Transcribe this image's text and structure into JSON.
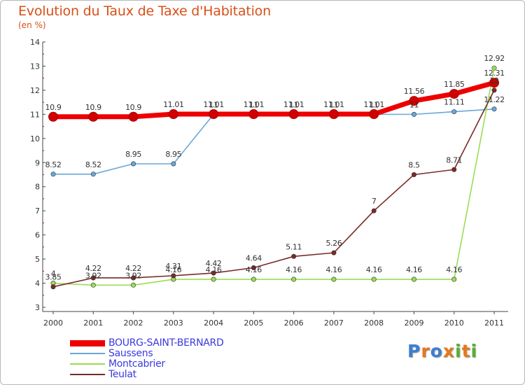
{
  "chart_data": {
    "type": "line",
    "title": "Evolution du Taux de Taxe d'Habitation",
    "subtitle": "(en %)",
    "xlabel": "",
    "ylabel": "",
    "ylim": [
      3,
      14
    ],
    "yticks": [
      "3",
      "4",
      "5",
      "6",
      "7",
      "8",
      "9",
      "10",
      "11",
      "12",
      "13",
      "14"
    ],
    "categories": [
      "2000",
      "2001",
      "2002",
      "2003",
      "2004",
      "2005",
      "2006",
      "2007",
      "2008",
      "2009",
      "2010",
      "2011"
    ],
    "grid": false,
    "series": [
      {
        "name": "BOURG-SAINT-BERNARD",
        "color": "#ee0000",
        "bold": true,
        "values": [
          10.9,
          10.9,
          10.9,
          11.01,
          11.01,
          11.01,
          11.01,
          11.01,
          11.01,
          11.56,
          11.85,
          12.31
        ],
        "labels": [
          "10.9",
          "10.9",
          "10.9",
          "11.01",
          "11.01",
          "11.01",
          "11.01",
          "11.01",
          "11.01",
          "11.56",
          "11.85",
          "12.31"
        ]
      },
      {
        "name": "Saussens",
        "color": "#6aa8d8",
        "bold": false,
        "values": [
          8.52,
          8.52,
          8.95,
          8.95,
          11,
          11,
          11,
          11,
          11,
          11,
          11.11,
          11.22
        ],
        "labels": [
          "8.52",
          "8.52",
          "8.95",
          "8.95",
          "11",
          "11",
          "11",
          "11",
          "11",
          "11",
          "11.11",
          "11.22"
        ]
      },
      {
        "name": "Montcabrier",
        "color": "#99dd55",
        "bold": false,
        "values": [
          4,
          3.92,
          3.92,
          4.16,
          4.16,
          4.16,
          4.16,
          4.16,
          4.16,
          4.16,
          4.16,
          12.92
        ],
        "labels": [
          "4",
          "3.92",
          "3.92",
          "4.16",
          "4.16",
          "4.16",
          "4.16",
          "4.16",
          "4.16",
          "4.16",
          "4.16",
          "12.92"
        ]
      },
      {
        "name": "Teulat",
        "color": "#7a2a2a",
        "bold": false,
        "values": [
          3.85,
          4.22,
          4.22,
          4.31,
          4.42,
          4.64,
          5.11,
          5.26,
          7,
          8.5,
          8.71,
          12
        ],
        "labels": [
          "3.85",
          "4.22",
          "4.22",
          "4.31",
          "4.42",
          "4.64",
          "5.11",
          "5.26",
          "7",
          "8.5",
          "8.71",
          "12"
        ]
      }
    ]
  },
  "logo": {
    "letters": [
      "P",
      "r",
      "o",
      "x",
      "i",
      "t",
      "i"
    ],
    "colors": [
      "#3a7fd5",
      "#e8771c",
      "#3a7fd5",
      "#e8771c",
      "#55b030",
      "#e8771c",
      "#55b030"
    ]
  }
}
